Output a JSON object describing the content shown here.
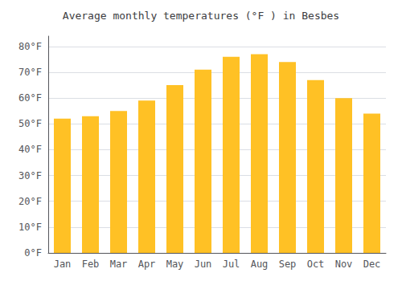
{
  "chart_data": {
    "type": "bar",
    "title": "Average monthly temperatures (°F ) in Besbes",
    "categories": [
      "Jan",
      "Feb",
      "Mar",
      "Apr",
      "May",
      "Jun",
      "Jul",
      "Aug",
      "Sep",
      "Oct",
      "Nov",
      "Dec"
    ],
    "values": [
      52,
      53,
      55,
      59,
      65,
      71,
      76,
      77,
      74,
      67,
      60,
      54
    ],
    "color": "#FFC125",
    "ylim": [
      0,
      84
    ],
    "yticks": [
      {
        "value": 0,
        "label": "0°F"
      },
      {
        "value": 10,
        "label": "10°F"
      },
      {
        "value": 20,
        "label": "20°F"
      },
      {
        "value": 30,
        "label": "30°F"
      },
      {
        "value": 40,
        "label": "40°F"
      },
      {
        "value": 50,
        "label": "50°F"
      },
      {
        "value": 60,
        "label": "60°F"
      },
      {
        "value": 70,
        "label": "70°F"
      },
      {
        "value": 80,
        "label": "80°F"
      }
    ],
    "grid": true
  }
}
